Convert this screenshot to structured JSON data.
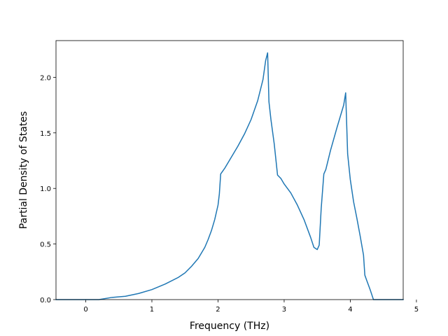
{
  "chart_data": {
    "type": "line",
    "title": "",
    "xlabel": "Frequency (THz)",
    "ylabel": "Partial Density of States",
    "xlim": [
      -0.45,
      4.8
    ],
    "ylim": [
      0.0,
      2.33
    ],
    "xticks": [
      0,
      1,
      2,
      3,
      4,
      5
    ],
    "xtick_labels": [
      "0",
      "1",
      "2",
      "3",
      "4",
      "5"
    ],
    "yticks": [
      0.0,
      0.5,
      1.0,
      1.5,
      2.0
    ],
    "ytick_labels": [
      "0.0",
      "0.5",
      "1.0",
      "1.5",
      "2.0"
    ],
    "grid": false,
    "legend": "none",
    "line_color": "#1f77b4",
    "series": [
      {
        "x": [
          -0.45,
          -0.2,
          0.0,
          0.2,
          0.4,
          0.6,
          0.8,
          1.0,
          1.2,
          1.4,
          1.5,
          1.6,
          1.7,
          1.8,
          1.85,
          1.9,
          1.95,
          2.0,
          2.02,
          2.04,
          2.1,
          2.2,
          2.3,
          2.4,
          2.5,
          2.6,
          2.68,
          2.72,
          2.75,
          2.77,
          2.8,
          2.85,
          2.9,
          2.95,
          3.0,
          3.1,
          3.2,
          3.3,
          3.4,
          3.45,
          3.5,
          3.53,
          3.56,
          3.6,
          3.63,
          3.7,
          3.8,
          3.85,
          3.9,
          3.93,
          3.96,
          4.0,
          4.05,
          4.1,
          4.15,
          4.2,
          4.22,
          4.25,
          4.3,
          4.35,
          4.5,
          4.8
        ],
        "y": [
          0.0,
          0.0,
          0.0,
          0.0,
          0.02,
          0.03,
          0.055,
          0.09,
          0.14,
          0.2,
          0.24,
          0.3,
          0.37,
          0.47,
          0.54,
          0.62,
          0.72,
          0.85,
          0.95,
          1.13,
          1.18,
          1.28,
          1.38,
          1.49,
          1.62,
          1.79,
          1.98,
          2.15,
          2.22,
          1.78,
          1.62,
          1.4,
          1.12,
          1.09,
          1.04,
          0.96,
          0.85,
          0.72,
          0.56,
          0.47,
          0.45,
          0.49,
          0.82,
          1.13,
          1.17,
          1.34,
          1.55,
          1.65,
          1.75,
          1.86,
          1.31,
          1.08,
          0.88,
          0.73,
          0.57,
          0.4,
          0.22,
          0.17,
          0.09,
          0.0,
          0.0,
          0.0
        ]
      }
    ]
  }
}
